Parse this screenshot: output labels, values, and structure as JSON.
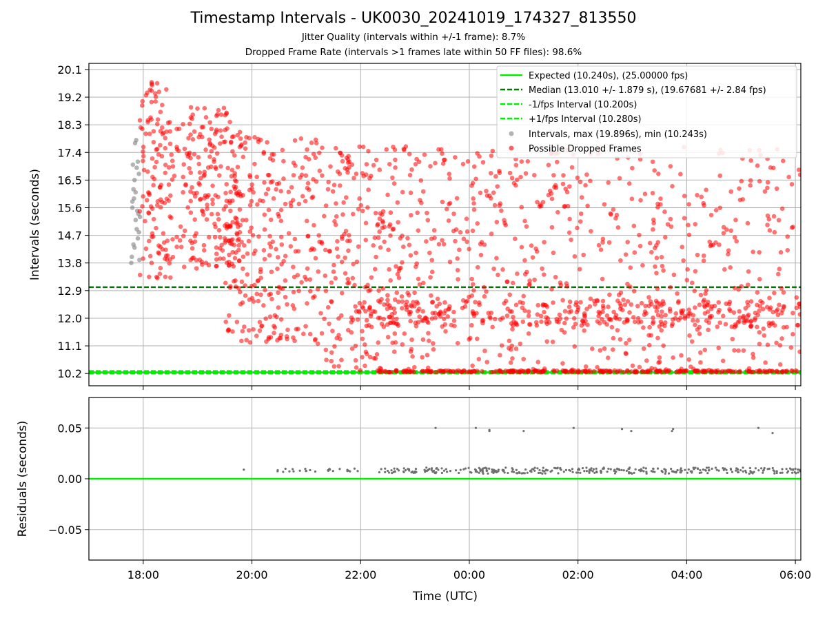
{
  "chart_data": [
    {
      "type": "scatter",
      "title": "Timestamp Intervals - UK0030_20241019_174327_813550",
      "subtitle_lines": [
        "Jitter Quality (intervals within +/-1 frame): 8.7%",
        "Dropped Frame Rate (intervals >1 frames late within 50 FF files): 98.6%"
      ],
      "xlabel": "",
      "ylabel": "Intervals (seconds)",
      "x_axis": {
        "type": "time",
        "ticks_hours": [
          18,
          20,
          22,
          24,
          26,
          28,
          30
        ],
        "tick_labels": [
          "18:00",
          "20:00",
          "22:00",
          "00:00",
          "02:00",
          "04:00",
          "06:00"
        ],
        "range_hours": [
          17.0,
          30.1
        ]
      },
      "y_axis": {
        "ticks": [
          10.2,
          11.1,
          12.0,
          12.9,
          13.8,
          14.7,
          15.6,
          16.5,
          17.4,
          18.3,
          19.2,
          20.1
        ],
        "tick_labels": [
          "10.2",
          "11.1",
          "12.0",
          "12.9",
          "13.8",
          "14.7",
          "15.6",
          "16.5",
          "17.4",
          "18.3",
          "19.2",
          "20.1"
        ],
        "range": [
          9.8,
          20.3
        ]
      },
      "grid": true,
      "legend_position": "top-right",
      "reference_lines": [
        {
          "label": "Expected (10.240s), (25.00000 fps)",
          "y": 10.24,
          "color": "#00ee00",
          "style": "solid"
        },
        {
          "label": "Median (13.010 +/- 1.879 s), (19.67681 +/- 2.84 fps)",
          "y": 13.01,
          "color": "#007700",
          "style": "dashed"
        },
        {
          "label": "-1/fps Interval (10.200s)",
          "y": 10.2,
          "color": "#00ee00",
          "style": "dashed"
        },
        {
          "label": "+1/fps Interval (10.280s)",
          "y": 10.28,
          "color": "#00ee00",
          "style": "dashed"
        }
      ],
      "series": [
        {
          "name": "Intervals, max (19.896s), min (10.243s)",
          "color": "#808080",
          "points": [
            [
              17.78,
              13.8
            ],
            [
              17.79,
              14.0
            ],
            [
              17.8,
              15.8
            ],
            [
              17.8,
              15.6
            ],
            [
              17.81,
              17.0
            ],
            [
              17.82,
              16.2
            ],
            [
              17.82,
              14.4
            ],
            [
              17.83,
              15.9
            ],
            [
              17.84,
              16.5
            ],
            [
              17.84,
              14.3
            ],
            [
              17.85,
              17.7
            ],
            [
              17.86,
              16.1
            ],
            [
              17.86,
              15.2
            ],
            [
              17.87,
              17.8
            ],
            [
              17.88,
              14.9
            ],
            [
              17.88,
              16.9
            ],
            [
              17.89,
              15.5
            ],
            [
              17.9,
              14.6
            ],
            [
              17.9,
              17.1
            ],
            [
              17.91,
              15.4
            ],
            [
              17.92,
              16.7
            ],
            [
              17.92,
              14.8
            ],
            [
              17.93,
              13.9
            ],
            [
              17.94,
              15.3
            ]
          ]
        },
        {
          "name": "Possible Dropped Frames",
          "color": "#ff0000",
          "scatter_bands": [
            {
              "x": [
                17.93,
                18.5
              ],
              "y": [
                13.3,
                19.9
              ],
              "n": 120
            },
            {
              "x": [
                18.5,
                19.8
              ],
              "y": [
                13.6,
                18.9
              ],
              "n": 220
            },
            {
              "x": [
                19.5,
                21.2
              ],
              "y": [
                11.2,
                17.9
              ],
              "n": 260
            },
            {
              "x": [
                21.2,
                23.5
              ],
              "y": [
                10.3,
                17.6
              ],
              "n": 300
            },
            {
              "x": [
                23.5,
                30.1
              ],
              "y": [
                10.3,
                17.6
              ],
              "n": 520
            },
            {
              "x": [
                21.8,
                30.1
              ],
              "y": [
                11.7,
                12.6
              ],
              "n": 320
            },
            {
              "x": [
                22.3,
                30.1
              ],
              "y": [
                10.24,
                10.3
              ],
              "n": 260
            }
          ]
        }
      ]
    },
    {
      "type": "scatter",
      "title": "",
      "xlabel": "Time (UTC)",
      "ylabel": "Residuals (seconds)",
      "x_axis": {
        "ticks_hours": [
          18,
          20,
          22,
          24,
          26,
          28,
          30
        ],
        "tick_labels": [
          "18:00",
          "20:00",
          "22:00",
          "00:00",
          "02:00",
          "04:00",
          "06:00"
        ],
        "range_hours": [
          17.0,
          30.1
        ]
      },
      "y_axis": {
        "ticks": [
          -0.05,
          0.0,
          0.05
        ],
        "tick_labels": [
          "−0.05",
          "0.00",
          "0.05"
        ],
        "range": [
          -0.08,
          0.08
        ]
      },
      "grid": true,
      "reference_lines": [
        {
          "y": 0.0,
          "color": "#00ee00",
          "style": "solid"
        }
      ],
      "series": [
        {
          "color": "#707070",
          "outliers": [
            [
              19.85,
              0.009
            ],
            [
              23.38,
              0.05
            ],
            [
              24.12,
              0.05
            ],
            [
              24.37,
              0.048
            ],
            [
              24.37,
              0.047
            ],
            [
              25.0,
              0.047
            ],
            [
              25.92,
              0.05
            ],
            [
              26.81,
              0.049
            ],
            [
              26.98,
              0.047
            ],
            [
              27.75,
              0.049
            ],
            [
              27.73,
              0.047
            ],
            [
              29.32,
              0.05
            ],
            [
              29.58,
              0.045
            ]
          ],
          "cluster_bands": [
            {
              "x": [
                20.45,
                22.0
              ],
              "y": [
                0.006,
                0.01
              ],
              "n": 26
            },
            {
              "x": [
                22.3,
                30.1
              ],
              "y": [
                0.005,
                0.011
              ],
              "n": 330
            }
          ]
        }
      ]
    }
  ]
}
